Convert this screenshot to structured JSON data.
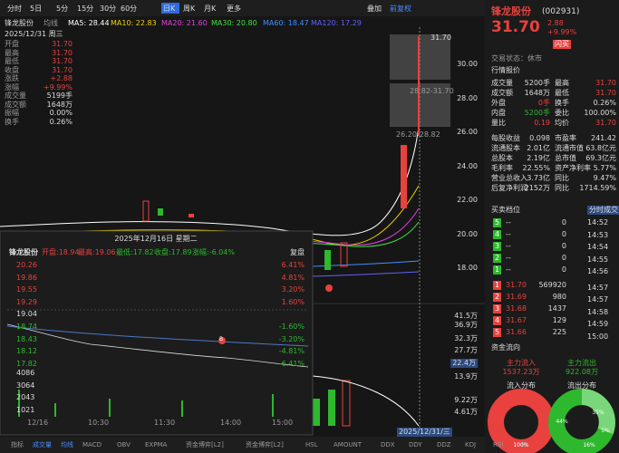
{
  "toolbar": {
    "tabs": [
      "分时",
      "5日",
      "5分",
      "15分",
      "30分",
      "60分",
      "日K",
      "周K",
      "月K",
      "更多"
    ],
    "tools": [
      "叠加",
      "前复权"
    ]
  },
  "ma_legend": {
    "name": "锋龙股份",
    "label": "均线",
    "items": [
      "MA5: 28.44",
      "MA10: 22.83",
      "MA20: 21.60",
      "MA30: 20.80",
      "MA60: 18.47",
      "MA120: 17.29"
    ]
  },
  "info_box": {
    "date": "2025/12/31 周三",
    "rows": [
      [
        "开盘",
        "31.70"
      ],
      [
        "最高",
        "31.70"
      ],
      [
        "最低",
        "31.70"
      ],
      [
        "收盘",
        "31.70"
      ],
      [
        "涨跌",
        "+2.88"
      ],
      [
        "涨幅",
        "+9.99%"
      ],
      [
        "成交量",
        "5199手"
      ],
      [
        "成交额",
        "1648万"
      ],
      [
        "振幅",
        "0.00%"
      ],
      [
        "换手",
        "0.26%"
      ]
    ]
  },
  "price_axis": [
    "30.00",
    "28.00",
    "26.00",
    "24.00",
    "22.00",
    "20.00",
    "18.00"
  ],
  "annotations": [
    "31.70",
    "28.82-31.70",
    "26.20-28.82"
  ],
  "volume_axis": [
    "41.5万",
    "36.9万",
    "32.3万",
    "27.7万",
    "22.4万",
    "13.9万",
    "9.22万",
    "4.61万"
  ],
  "date_tag": "2025/12/31/三",
  "popup": {
    "date": "2025年12月16日 星期二",
    "name": "锋龙股份",
    "fields": [
      "开盘:18.94",
      "最高:19.06",
      "最低:17.82",
      "收盘:17.89",
      "涨幅:-6.04%"
    ],
    "replay": "复盘",
    "price_labels": [
      "20.26",
      "19.86",
      "19.55",
      "19.29",
      "19.04",
      "18.74",
      "18.43",
      "18.12",
      "17.82"
    ],
    "pct_labels": [
      "6.41%",
      "4.81%",
      "3.20%",
      "1.60%",
      "-1.60%",
      "-3.20%",
      "-4.81%",
      "-6.41%"
    ],
    "volume_labels": [
      "4086",
      "3064",
      "2043",
      "1021"
    ],
    "times": [
      "12/16",
      "10:30",
      "11:30",
      "14:00",
      "15:00"
    ],
    "marker": "B"
  },
  "bottom_tabs": [
    "指标",
    "成交量",
    "均线",
    "MACD",
    "OBV",
    "EXPMA",
    "资金博弈[L2]",
    "资金博弈[L2]",
    "HSL",
    "AMOUNT",
    "DDX",
    "DDY",
    "DDZ",
    "KDJ",
    "RSI",
    "BI"
  ],
  "quote": {
    "name": "锋龙股份",
    "code": "(002931)",
    "price": "31.70",
    "change": "2.88",
    "pct": "+9.99%",
    "button": "闪买",
    "status": "交易状态：休市",
    "section": "行情报价",
    "rows": [
      [
        "成交量",
        "5200手",
        "最高",
        "31.70"
      ],
      [
        "成交额",
        "1648万",
        "最低",
        "31.70"
      ],
      [
        "外盘",
        "0手",
        "换手",
        "0.26%"
      ],
      [
        "内盘",
        "5200手",
        "委比",
        "100.00%"
      ],
      [
        "量比",
        "0.19",
        "均价",
        "31.70"
      ],
      [
        "每股收益",
        "0.098",
        "市盈率",
        "241.42"
      ],
      [
        "流通股本",
        "2.01亿",
        "流通市值",
        "63.8亿元"
      ],
      [
        "总股本",
        "2.19亿",
        "总市值",
        "69.3亿元"
      ],
      [
        "毛利率",
        "22.55%",
        "资产净利率",
        "5.77%"
      ],
      [
        "营业总收入",
        "3.73亿",
        "同比",
        "9.47%"
      ],
      [
        "后复净利润",
        "2152万",
        "同比",
        "1714.59%"
      ]
    ]
  },
  "order_book": {
    "title": "买卖档位",
    "tab": "分时成交",
    "asks": [
      [
        "5",
        "--",
        "0"
      ],
      [
        "4",
        "--",
        "0"
      ],
      [
        "3",
        "--",
        "0"
      ],
      [
        "2",
        "--",
        "0"
      ],
      [
        "1",
        "--",
        "0"
      ]
    ],
    "bids": [
      [
        "1",
        "31.70",
        "569920"
      ],
      [
        "2",
        "31.69",
        "980"
      ],
      [
        "3",
        "31.68",
        "1437"
      ],
      [
        "4",
        "31.67",
        "129"
      ],
      [
        "5",
        "31.66",
        "225"
      ]
    ],
    "times": [
      "14:52",
      "14:53",
      "14:54",
      "14:55",
      "14:56",
      "14:57",
      "14:57",
      "14:58",
      "14:59",
      "15:00"
    ]
  },
  "fund_flow": {
    "title": "资金流向",
    "in_label": "主力流入",
    "in_value": "1537.23万",
    "out_label": "主力流出",
    "out_value": "922.08万",
    "in_dist": "流入分布",
    "out_dist": "流出分布",
    "in_pcts": [
      "100%"
    ],
    "out_pcts": [
      "44%",
      "35%",
      "16%",
      "5%"
    ]
  }
}
